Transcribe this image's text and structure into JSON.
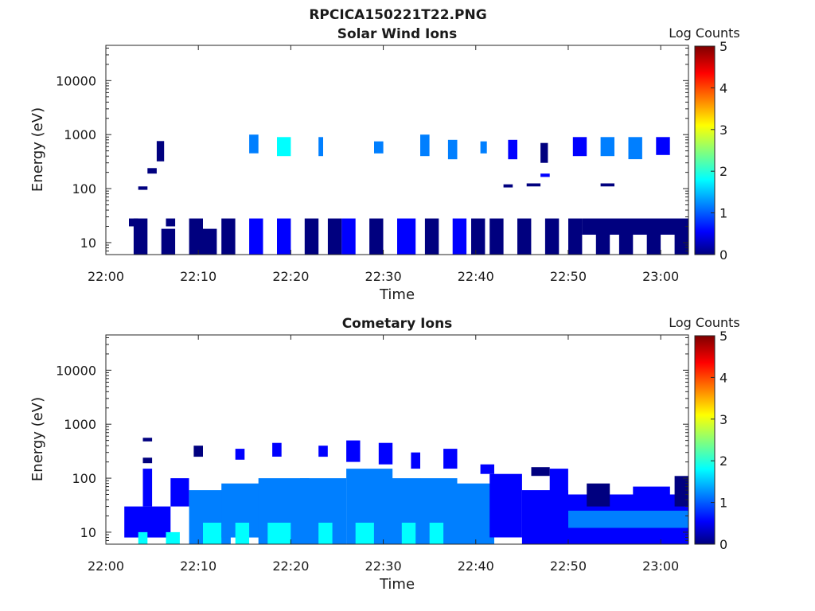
{
  "figure": {
    "title": "RPCICA150221T22.PNG"
  },
  "colormap": [
    "#00007f",
    "#0000ff",
    "#007fff",
    "#00ffff",
    "#7fff7f",
    "#ffff00",
    "#ff7f00",
    "#ff0000",
    "#7f0000"
  ],
  "chart_data": [
    {
      "type": "heatmap",
      "title": "Solar Wind Ions",
      "xlabel": "Time",
      "ylabel": "Energy (eV)",
      "y_scale": "log",
      "ylim": [
        6,
        45000
      ],
      "xlim": [
        "22:00",
        "23:03"
      ],
      "x_ticks": [
        "22:00",
        "22:10",
        "22:20",
        "22:30",
        "22:40",
        "22:50",
        "23:00"
      ],
      "y_ticks": [
        "10",
        "100",
        "1000",
        "10000"
      ],
      "colorbar": {
        "label": "Log Counts",
        "range": [
          0,
          5
        ],
        "ticks": [
          "0",
          "1",
          "2",
          "3",
          "4",
          "5"
        ]
      },
      "cells": [
        [
          "22:02.5",
          "22:03.5",
          20,
          28,
          0.1
        ],
        [
          "22:03.0",
          "22:04.5",
          6,
          28,
          0.1
        ],
        [
          "22:06.0",
          "22:07.5",
          6,
          18,
          0.1
        ],
        [
          "22:06.5",
          "22:07.5",
          20,
          28,
          0.1
        ],
        [
          "22:09.0",
          "22:10.5",
          6,
          28,
          0.1
        ],
        [
          "22:10.5",
          "22:12.0",
          6,
          18,
          0.2
        ],
        [
          "22:12.5",
          "22:14.0",
          6,
          28,
          0.3
        ],
        [
          "22:15.5",
          "22:17.0",
          6,
          28,
          0.6
        ],
        [
          "22:18.5",
          "22:20.0",
          6,
          28,
          0.7
        ],
        [
          "22:21.5",
          "22:23.0",
          6,
          28,
          0.2
        ],
        [
          "22:24.0",
          "22:25.5",
          6,
          28,
          0.1
        ],
        [
          "22:25.5",
          "22:27.0",
          6,
          28,
          0.4
        ],
        [
          "22:28.5",
          "22:30.0",
          6,
          28,
          0.2
        ],
        [
          "22:31.5",
          "22:33.5",
          6,
          28,
          0.6
        ],
        [
          "22:34.5",
          "22:36.0",
          6,
          28,
          0.3
        ],
        [
          "22:37.5",
          "22:39.0",
          6,
          28,
          0.4
        ],
        [
          "22:39.5",
          "22:41.0",
          6,
          28,
          0.1
        ],
        [
          "22:41.5",
          "22:43.0",
          6,
          28,
          0.2
        ],
        [
          "22:44.5",
          "22:46.0",
          6,
          28,
          0.1
        ],
        [
          "22:47.5",
          "22:49.0",
          6,
          28,
          0.1
        ],
        [
          "22:50.0",
          "22:51.5",
          6,
          28,
          0.1
        ],
        [
          "22:51.5",
          "23:03.0",
          14,
          28,
          0.1
        ],
        [
          "22:53.0",
          "22:54.5",
          6,
          14,
          0.1
        ],
        [
          "22:55.5",
          "22:57.0",
          6,
          14,
          0.1
        ],
        [
          "22:58.5",
          "23:00.0",
          6,
          14,
          0.1
        ],
        [
          "23:01.5",
          "23:03.0",
          6,
          14,
          0.1
        ],
        [
          "22:05.5",
          "22:06.3",
          320,
          760,
          0.3
        ],
        [
          "22:15.5",
          "22:16.5",
          450,
          1000,
          1.3
        ],
        [
          "22:18.5",
          "22:20.0",
          400,
          900,
          1.6
        ],
        [
          "22:23.0",
          "22:23.5",
          400,
          900,
          1.0
        ],
        [
          "22:29.0",
          "22:30.0",
          450,
          750,
          1.0
        ],
        [
          "22:34.0",
          "22:35.0",
          400,
          1000,
          1.4
        ],
        [
          "22:37.0",
          "22:38.0",
          350,
          800,
          1.3
        ],
        [
          "22:40.5",
          "22:41.2",
          450,
          750,
          1.2
        ],
        [
          "22:43.5",
          "22:44.5",
          350,
          800,
          0.8
        ],
        [
          "22:47.0",
          "22:47.8",
          300,
          700,
          0.3
        ],
        [
          "22:50.5",
          "22:52.0",
          400,
          900,
          0.8
        ],
        [
          "22:53.5",
          "22:55.0",
          400,
          900,
          1.3
        ],
        [
          "22:56.5",
          "22:58.0",
          350,
          900,
          1.2
        ],
        [
          "22:59.5",
          "23:01.0",
          420,
          900,
          0.7
        ],
        [
          "22:04.5",
          "22:05.5",
          190,
          240,
          0.1
        ],
        [
          "22:03.5",
          "22:04.5",
          95,
          110,
          0.2
        ],
        [
          "22:43.0",
          "22:44.0",
          105,
          120,
          0.3
        ],
        [
          "22:45.5",
          "22:47.0",
          110,
          125,
          0.2
        ],
        [
          "22:47.0",
          "22:48.0",
          165,
          190,
          0.4
        ],
        [
          "22:53.5",
          "22:55.0",
          110,
          125,
          0.1
        ]
      ]
    },
    {
      "type": "heatmap",
      "title": "Cometary Ions",
      "xlabel": "Time",
      "ylabel": "Energy (eV)",
      "y_scale": "log",
      "ylim": [
        6,
        45000
      ],
      "xlim": [
        "22:00",
        "23:03"
      ],
      "x_ticks": [
        "22:00",
        "22:10",
        "22:20",
        "22:30",
        "22:40",
        "22:50",
        "23:00"
      ],
      "y_ticks": [
        "10",
        "100",
        "1000",
        "10000"
      ],
      "colorbar": {
        "label": "Log Counts",
        "range": [
          0,
          5
        ],
        "ticks": [
          "0",
          "1",
          "2",
          "3",
          "4",
          "5"
        ]
      },
      "cells": [
        [
          "22:02.0",
          "22:07.0",
          8,
          30,
          0.5
        ],
        [
          "22:03.5",
          "22:04.5",
          6,
          10,
          1.9
        ],
        [
          "22:06.5",
          "22:08.0",
          6,
          10,
          1.8
        ],
        [
          "22:04.0",
          "22:05.0",
          30,
          150,
          0.9
        ],
        [
          "22:07.0",
          "22:09.0",
          30,
          100,
          0.5
        ],
        [
          "22:09.0",
          "22:13.5",
          6,
          60,
          1.0
        ],
        [
          "22:10.5",
          "22:12.5",
          6,
          15,
          1.6
        ],
        [
          "22:12.5",
          "22:17.0",
          8,
          80,
          1.0
        ],
        [
          "22:14.0",
          "22:15.5",
          6,
          15,
          1.7
        ],
        [
          "22:16.5",
          "22:22.0",
          6,
          100,
          1.1
        ],
        [
          "22:17.5",
          "22:20.0",
          6,
          15,
          2.0
        ],
        [
          "22:21.0",
          "22:26.0",
          6,
          100,
          1.0
        ],
        [
          "22:23.0",
          "22:24.5",
          6,
          15,
          1.9
        ],
        [
          "22:26.0",
          "22:31.0",
          6,
          150,
          1.1
        ],
        [
          "22:27.0",
          "22:29.0",
          6,
          15,
          2.0
        ],
        [
          "22:30.0",
          "22:34.0",
          6,
          100,
          1.0
        ],
        [
          "22:32.0",
          "22:33.5",
          6,
          15,
          2.0
        ],
        [
          "22:34.0",
          "22:38.0",
          6,
          100,
          1.0
        ],
        [
          "22:35.0",
          "22:36.5",
          6,
          15,
          1.9
        ],
        [
          "22:38.0",
          "22:42.0",
          6,
          80,
          1.0
        ],
        [
          "22:38.5",
          "22:40.0",
          6,
          15,
          1.5
        ],
        [
          "22:41.5",
          "22:45.0",
          8,
          120,
          0.8
        ],
        [
          "22:45.0",
          "22:50.0",
          6,
          60,
          0.7
        ],
        [
          "22:48.0",
          "22:50.0",
          30,
          150,
          0.4
        ],
        [
          "22:50.0",
          "23:03.0",
          6,
          50,
          0.5
        ],
        [
          "22:50.0",
          "23:03.0",
          12,
          25,
          1.2
        ],
        [
          "22:50.0",
          "23:03.0",
          6,
          10,
          0.6
        ],
        [
          "22:52.0",
          "22:54.5",
          30,
          80,
          0.3
        ],
        [
          "22:57.0",
          "23:01.0",
          30,
          70,
          0.6
        ],
        [
          "23:01.5",
          "23:03.0",
          30,
          110,
          0.3
        ],
        [
          "22:04.0",
          "22:05.0",
          480,
          560,
          0.1
        ],
        [
          "22:04.0",
          "22:05.0",
          190,
          240,
          0.1
        ],
        [
          "22:09.5",
          "22:10.5",
          250,
          400,
          0.3
        ],
        [
          "22:14.0",
          "22:15.0",
          220,
          350,
          0.5
        ],
        [
          "22:18.0",
          "22:19.0",
          250,
          450,
          0.6
        ],
        [
          "22:23.0",
          "22:24.0",
          250,
          400,
          0.5
        ],
        [
          "22:26.0",
          "22:27.5",
          200,
          500,
          0.4
        ],
        [
          "22:29.5",
          "22:31.0",
          180,
          450,
          0.5
        ],
        [
          "22:33.0",
          "22:34.0",
          150,
          300,
          0.4
        ],
        [
          "22:36.5",
          "22:38.0",
          150,
          350,
          0.5
        ],
        [
          "22:40.5",
          "22:42.0",
          120,
          180,
          0.4
        ],
        [
          "22:46.0",
          "22:48.0",
          110,
          160,
          0.1
        ]
      ]
    }
  ]
}
